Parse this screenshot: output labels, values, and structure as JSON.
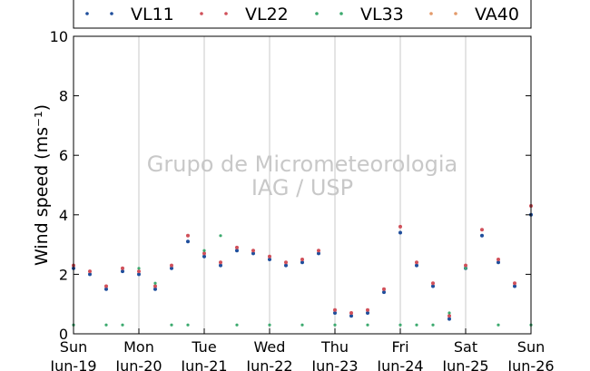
{
  "chart_data": {
    "type": "scatter",
    "ylabel": "Wind speed (ms⁻¹)",
    "ylim": [
      0,
      10
    ],
    "yticks": [
      "0",
      "2",
      "4",
      "6",
      "8",
      "10"
    ],
    "xlim": [
      "2016-06-19",
      "2016-06-26"
    ],
    "xticks": [
      {
        "day": "Sun",
        "date": "Jun-19"
      },
      {
        "day": "Mon",
        "date": "Jun-20"
      },
      {
        "day": "Tue",
        "date": "Jun-21"
      },
      {
        "day": "Wed",
        "date": "Jun-22"
      },
      {
        "day": "Thu",
        "date": "Jun-23"
      },
      {
        "day": "Fri",
        "date": "Jun-24"
      },
      {
        "day": "Sat",
        "date": "Jun-25"
      },
      {
        "day": "Sun",
        "date": "Jun-26"
      }
    ],
    "grid": "vertical",
    "legend_position": "top",
    "watermark": [
      "Grupo de Micrometeorologia",
      "IAG / USP"
    ],
    "series": [
      {
        "name": "VL11",
        "color": "#1f4e9c",
        "x": [
          "2016-06-19T00:00",
          "2016-06-19T06:00",
          "2016-06-19T12:00",
          "2016-06-19T18:00",
          "2016-06-20T00:00",
          "2016-06-20T06:00",
          "2016-06-20T12:00",
          "2016-06-20T18:00",
          "2016-06-21T00:00",
          "2016-06-21T06:00",
          "2016-06-21T12:00",
          "2016-06-21T18:00",
          "2016-06-22T00:00",
          "2016-06-22T06:00",
          "2016-06-22T12:00",
          "2016-06-22T18:00",
          "2016-06-23T00:00",
          "2016-06-23T06:00",
          "2016-06-23T12:00",
          "2016-06-23T18:00",
          "2016-06-24T00:00",
          "2016-06-24T06:00",
          "2016-06-24T12:00",
          "2016-06-24T18:00",
          "2016-06-25T00:00",
          "2016-06-25T06:00",
          "2016-06-25T12:00",
          "2016-06-25T18:00",
          "2016-06-26T00:00"
        ],
        "y": [
          2.2,
          2.0,
          1.5,
          2.1,
          2.0,
          1.5,
          2.2,
          3.1,
          2.6,
          2.3,
          2.8,
          2.7,
          2.5,
          2.3,
          2.4,
          2.7,
          0.7,
          0.6,
          0.7,
          1.4,
          3.4,
          2.3,
          1.6,
          0.5,
          2.2,
          3.3,
          2.4,
          1.6,
          4.0
        ]
      },
      {
        "name": "VL22",
        "color": "#d0505a",
        "x": [
          "2016-06-19T00:00",
          "2016-06-19T06:00",
          "2016-06-19T12:00",
          "2016-06-19T18:00",
          "2016-06-20T00:00",
          "2016-06-20T06:00",
          "2016-06-20T12:00",
          "2016-06-20T18:00",
          "2016-06-21T00:00",
          "2016-06-21T06:00",
          "2016-06-21T12:00",
          "2016-06-21T18:00",
          "2016-06-22T00:00",
          "2016-06-22T06:00",
          "2016-06-22T12:00",
          "2016-06-22T18:00",
          "2016-06-23T00:00",
          "2016-06-23T06:00",
          "2016-06-23T12:00",
          "2016-06-23T18:00",
          "2016-06-24T00:00",
          "2016-06-24T06:00",
          "2016-06-24T12:00",
          "2016-06-24T18:00",
          "2016-06-25T00:00",
          "2016-06-25T06:00",
          "2016-06-25T12:00",
          "2016-06-25T18:00",
          "2016-06-26T00:00"
        ],
        "y": [
          2.3,
          2.1,
          1.6,
          2.2,
          2.1,
          1.6,
          2.3,
          3.3,
          2.7,
          2.4,
          2.9,
          2.8,
          2.6,
          2.4,
          2.5,
          2.8,
          0.8,
          0.7,
          0.8,
          1.5,
          3.6,
          2.4,
          1.7,
          0.6,
          2.3,
          3.5,
          2.5,
          1.7,
          4.3
        ]
      },
      {
        "name": "VL33",
        "color": "#3caa6e",
        "x": [
          "2016-06-19T00:00",
          "2016-06-19T12:00",
          "2016-06-19T18:00",
          "2016-06-20T00:00",
          "2016-06-20T06:00",
          "2016-06-20T12:00",
          "2016-06-20T18:00",
          "2016-06-21T00:00",
          "2016-06-21T06:00",
          "2016-06-21T12:00",
          "2016-06-22T00:00",
          "2016-06-22T12:00",
          "2016-06-23T00:00",
          "2016-06-23T12:00",
          "2016-06-24T00:00",
          "2016-06-24T06:00",
          "2016-06-24T12:00",
          "2016-06-24T18:00",
          "2016-06-25T00:00",
          "2016-06-25T12:00",
          "2016-06-26T00:00"
        ],
        "y": [
          0.3,
          0.3,
          0.3,
          2.2,
          1.7,
          0.3,
          0.3,
          2.8,
          3.3,
          0.3,
          0.3,
          0.3,
          0.3,
          0.3,
          0.3,
          0.3,
          0.3,
          0.7,
          2.2,
          0.3,
          0.3
        ]
      },
      {
        "name": "VA40",
        "color": "#e39a6a",
        "x": [],
        "y": []
      }
    ]
  }
}
